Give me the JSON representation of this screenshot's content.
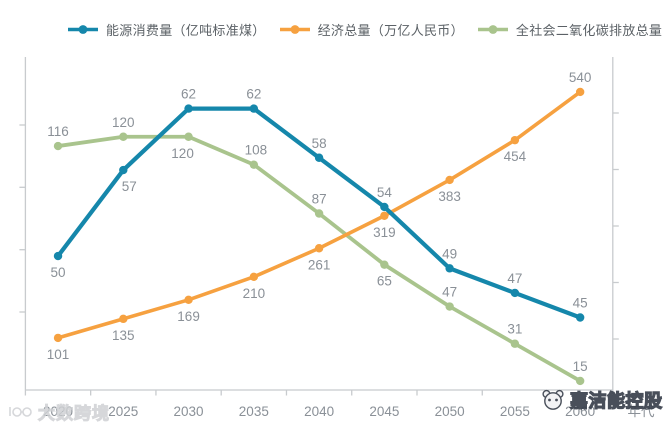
{
  "chart_data": {
    "type": "line",
    "categories": [
      "2020",
      "2025",
      "2030",
      "2035",
      "2040",
      "2045",
      "2050",
      "2055",
      "2060"
    ],
    "xlabel": "年代",
    "legend_position": "top",
    "grid": false,
    "series": [
      {
        "name": "能源消费量（亿吨标准煤）",
        "color": "#1587ab",
        "values": [
          50,
          57,
          62,
          62,
          58,
          54,
          49,
          47,
          45
        ],
        "y_range": [
          39.1,
          66.2
        ],
        "label_side": [
          "below",
          "below",
          "above",
          "above",
          "above",
          "above",
          "above",
          "above",
          "above"
        ],
        "label_dx": [
          0,
          6,
          0,
          0,
          0,
          0,
          0,
          0,
          0
        ]
      },
      {
        "name": "经济总量（万亿人民币）",
        "color": "#f6a140",
        "values": [
          101,
          135,
          169,
          210,
          261,
          319,
          383,
          454,
          540
        ],
        "y_range": [
          8,
          602.4
        ],
        "label_side": [
          "below",
          "below",
          "below",
          "below",
          "below",
          "below",
          "below",
          "below",
          "above"
        ],
        "label_dx": [
          0,
          0,
          0,
          0,
          0,
          0,
          0,
          0,
          0
        ]
      },
      {
        "name": "全社会二氧化碳排放总量（亿吨）",
        "color": "#a9c48d",
        "values": [
          116,
          120,
          120,
          108,
          87,
          65,
          47,
          31,
          15
        ],
        "y_range": [
          11.1,
          154.3
        ],
        "label_side": [
          "above",
          "above",
          "below",
          "above",
          "above",
          "below",
          "above",
          "above",
          "above"
        ],
        "label_dx": [
          0,
          0,
          -6,
          2,
          0,
          0,
          0,
          0,
          0
        ]
      }
    ],
    "label_color": "#8a9097",
    "axis_color": "#c8cbce",
    "x_tick_label_color": "#8a9097"
  },
  "watermarks": {
    "left_text": "大数跨境",
    "right_text": "嘉洁能控股"
  }
}
